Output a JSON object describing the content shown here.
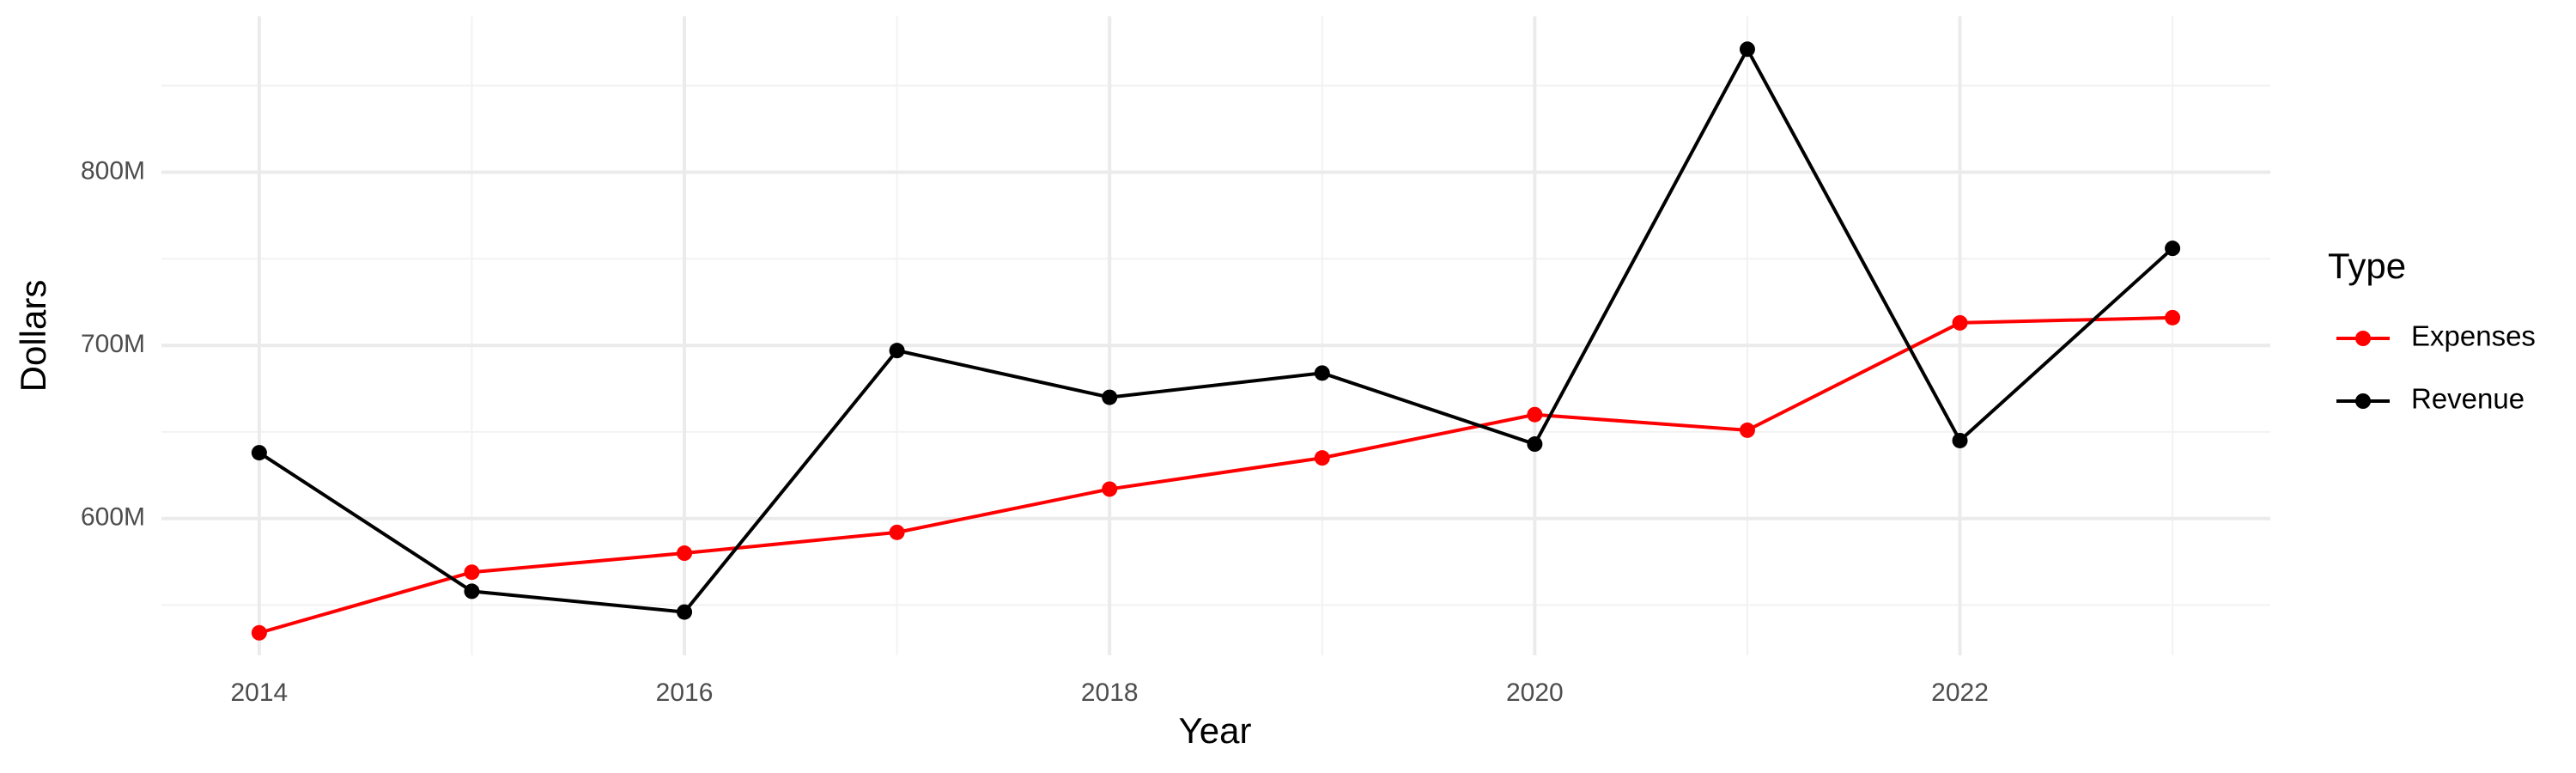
{
  "chart_data": {
    "type": "line",
    "x_label": "Year",
    "y_label": "Dollars",
    "legend_title": "Type",
    "x": [
      2014,
      2015,
      2016,
      2017,
      2018,
      2019,
      2020,
      2021,
      2022,
      2023
    ],
    "series": [
      {
        "name": "Expenses",
        "color": "#ff0000",
        "values": [
          534000000,
          569000000,
          580000000,
          592000000,
          617000000,
          635000000,
          660000000,
          651000000,
          713000000,
          716000000
        ]
      },
      {
        "name": "Revenue",
        "color": "#000000",
        "values": [
          638000000,
          558000000,
          546000000,
          697000000,
          670000000,
          684000000,
          643000000,
          871000000,
          645000000,
          756000000
        ]
      }
    ],
    "xlim": [
      2013.54,
      2023.46
    ],
    "xticks": [
      2014,
      2016,
      2018,
      2020,
      2022
    ],
    "ylim": [
      521000000,
      890000000
    ],
    "yticks": [
      {
        "value": 600000000,
        "label": "600M"
      },
      {
        "value": 700000000,
        "label": "700M"
      },
      {
        "value": 800000000,
        "label": "800M"
      }
    ],
    "grid": true,
    "legend": "right"
  }
}
